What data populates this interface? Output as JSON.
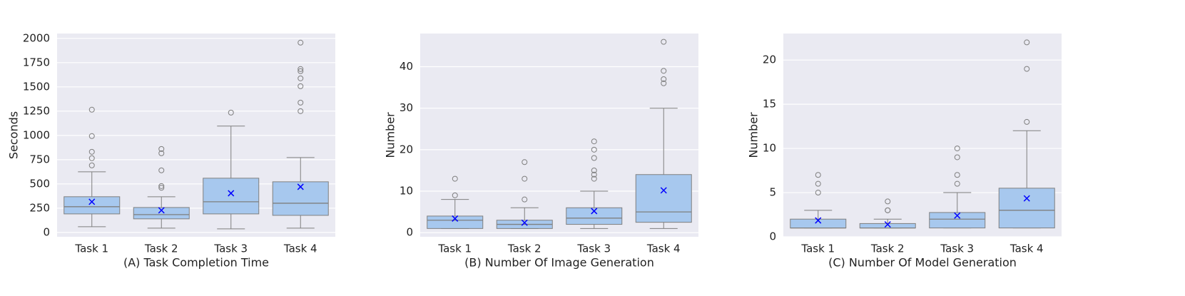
{
  "chart_data": [
    {
      "type": "box",
      "x_label": "(A) Task Completion Time",
      "y_label": "Seconds",
      "categories": [
        "Task 1",
        "Task 2",
        "Task 3",
        "Task 4"
      ],
      "color": "#a7c8ee",
      "mean_color": "#0000ff",
      "grid": true,
      "ylim": [
        -45,
        2050
      ],
      "yticks": [
        0,
        250,
        500,
        750,
        1000,
        1250,
        1500,
        1750,
        2000
      ],
      "boxes": [
        {
          "whislo": 59,
          "q1": 191,
          "med": 265,
          "q3": 368,
          "whishi": 625,
          "mean": 316,
          "fliers": [
            691,
            765,
            831,
            993,
            1265
          ]
        },
        {
          "whislo": 44,
          "q1": 140,
          "med": 184,
          "q3": 257,
          "whishi": 368,
          "mean": 228,
          "fliers": [
            460,
            478,
            640,
            816,
            860
          ]
        },
        {
          "whislo": 37,
          "q1": 191,
          "med": 316,
          "q3": 559,
          "whishi": 1096,
          "mean": 404,
          "fliers": [
            1235
          ]
        },
        {
          "whislo": 44,
          "q1": 176,
          "med": 301,
          "q3": 522,
          "whishi": 772,
          "mean": 470,
          "fliers": [
            1250,
            1338,
            1507,
            1588,
            1662,
            1684,
            1956
          ]
        }
      ]
    },
    {
      "type": "box",
      "x_label": "(B) Number Of Image Generation",
      "y_label": "Number",
      "categories": [
        "Task 1",
        "Task 2",
        "Task 3",
        "Task 4"
      ],
      "color": "#a7c8ee",
      "mean_color": "#0000ff",
      "grid": true,
      "ylim": [
        -1,
        48
      ],
      "yticks": [
        0,
        10,
        20,
        30,
        40
      ],
      "boxes": [
        {
          "whislo": 1,
          "q1": 1,
          "med": 3,
          "q3": 4,
          "whishi": 8,
          "mean": 3.4,
          "fliers": [
            9,
            13
          ]
        },
        {
          "whislo": 1,
          "q1": 1,
          "med": 2,
          "q3": 3,
          "whishi": 6,
          "mean": 2.4,
          "fliers": [
            8,
            13,
            17
          ]
        },
        {
          "whislo": 1,
          "q1": 2,
          "med": 3.5,
          "q3": 6,
          "whishi": 10,
          "mean": 5.2,
          "fliers": [
            13,
            14,
            15,
            18,
            20,
            22
          ]
        },
        {
          "whislo": 1,
          "q1": 2.5,
          "med": 5,
          "q3": 14,
          "whishi": 30,
          "mean": 10.2,
          "fliers": [
            36,
            37,
            39,
            46
          ]
        }
      ]
    },
    {
      "type": "box",
      "x_label": "(C) Number Of Model Generation",
      "y_label": "Number",
      "categories": [
        "Task 1",
        "Task 2",
        "Task 3",
        "Task 4"
      ],
      "color": "#a7c8ee",
      "mean_color": "#0000ff",
      "grid": true,
      "ylim": [
        0,
        23
      ],
      "yticks": [
        0,
        5,
        10,
        15,
        20
      ],
      "boxes": [
        {
          "whislo": 1,
          "q1": 1,
          "med": 1,
          "q3": 2,
          "whishi": 3,
          "mean": 1.85,
          "fliers": [
            5,
            6,
            7
          ]
        },
        {
          "whislo": 1,
          "q1": 1,
          "med": 1,
          "q3": 1.5,
          "whishi": 2,
          "mean": 1.4,
          "fliers": [
            3,
            3,
            4
          ]
        },
        {
          "whislo": 1,
          "q1": 1,
          "med": 2,
          "q3": 2.75,
          "whishi": 5,
          "mean": 2.4,
          "fliers": [
            6,
            7,
            9,
            10
          ]
        },
        {
          "whislo": 1,
          "q1": 1,
          "med": 3,
          "q3": 5.5,
          "whishi": 12,
          "mean": 4.35,
          "fliers": [
            13,
            19,
            22
          ]
        }
      ]
    }
  ]
}
